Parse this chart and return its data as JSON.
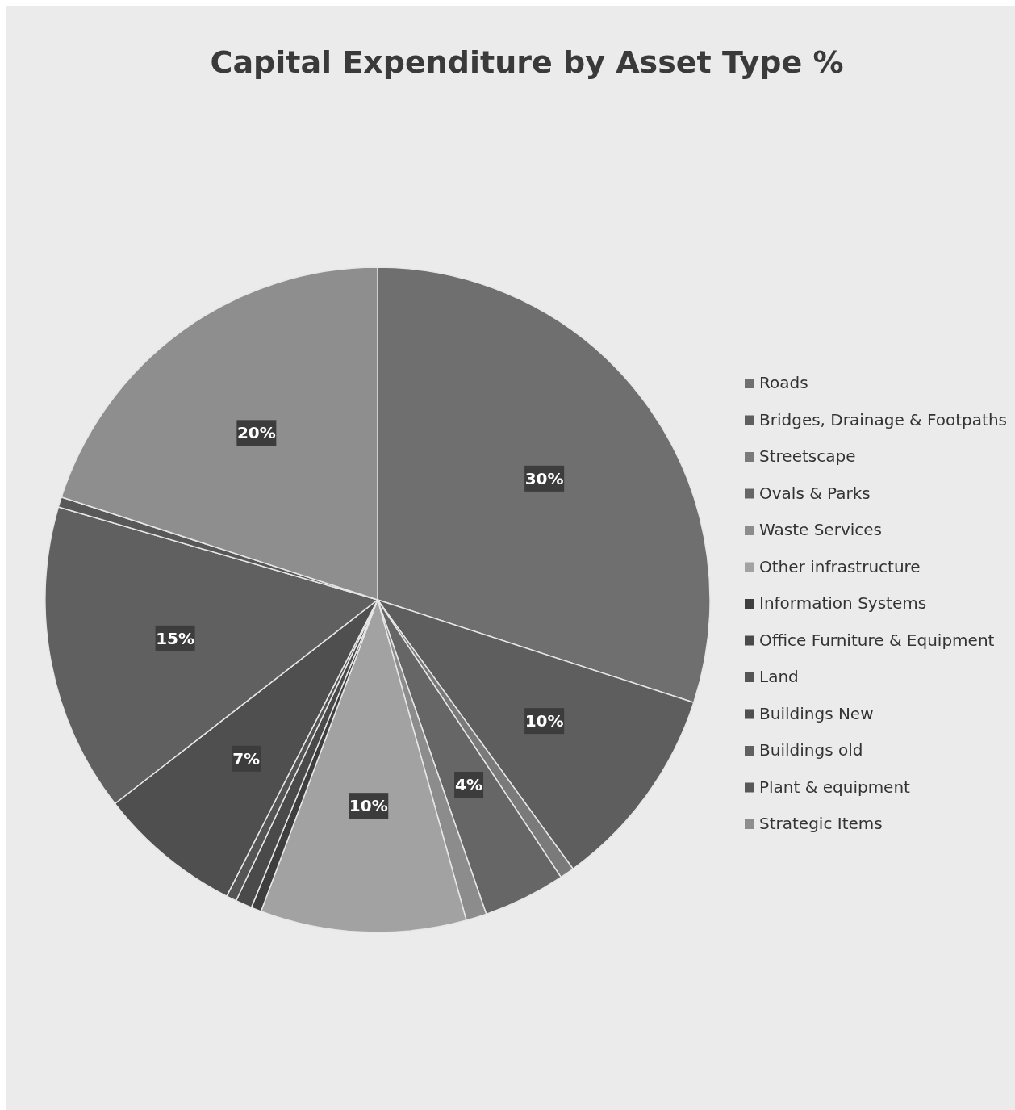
{
  "chart_data": {
    "type": "pie",
    "title": "Capital Expenditure by Asset Type %",
    "categories": [
      "Roads",
      "Bridges, Drainage & Footpaths",
      "Streetscape",
      "Ovals & Parks",
      "Waste Services",
      "Other infrastructure",
      "Information Systems",
      "Office Furniture & Equipment",
      "Land",
      "Buildings New",
      "Buildings old",
      "Plant & equipment",
      "Strategic Items"
    ],
    "values": [
      30,
      10,
      0.7,
      4,
      1,
      10,
      0.5,
      0.8,
      0.5,
      7,
      15,
      0.5,
      20
    ],
    "colors": [
      "#6f6f6f",
      "#5e5e5e",
      "#7a7a7a",
      "#666666",
      "#8c8c8c",
      "#a2a2a2",
      "#3e3e3e",
      "#4a4a4a",
      "#555555",
      "#4f4f4f",
      "#606060",
      "#585858",
      "#8e8e8e"
    ],
    "value_labels": [
      "30%",
      "10%",
      null,
      "4%",
      null,
      "10%",
      null,
      null,
      null,
      "7%",
      "15%",
      null,
      "20%"
    ],
    "legend": "right"
  }
}
